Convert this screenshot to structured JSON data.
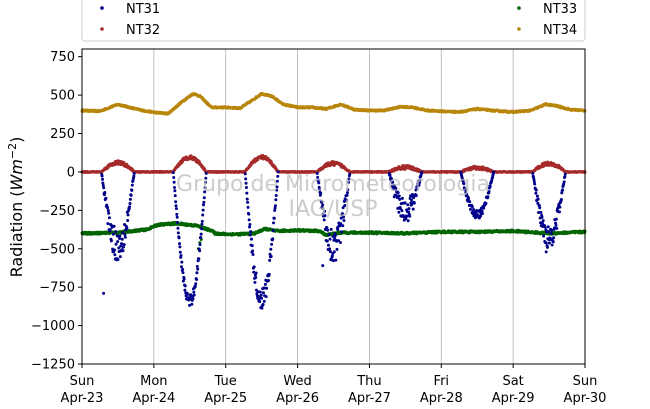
{
  "chart_data": {
    "type": "scatter",
    "title": "",
    "ylabel": "Radiation ($Wm^{-2}$)",
    "ylabel_parts": {
      "main": "Radiation (",
      "var": "Wm",
      "sup": "−2",
      "close": ")"
    },
    "xlabel": "",
    "ylim": [
      -1250,
      800
    ],
    "xlim": [
      0,
      7
    ],
    "yticks": [
      -1250,
      -1000,
      -750,
      -500,
      -250,
      0,
      250,
      500,
      750
    ],
    "ytick_labels": [
      "−1250",
      "−1000",
      "−750",
      "−500",
      "−250",
      "0",
      "250",
      "500",
      "750"
    ],
    "xticks": [
      {
        "value": 0,
        "day": "Sun",
        "date": "Apr-23"
      },
      {
        "value": 1,
        "day": "Mon",
        "date": "Apr-24"
      },
      {
        "value": 2,
        "day": "Tue",
        "date": "Apr-25"
      },
      {
        "value": 3,
        "day": "Wed",
        "date": "Apr-26"
      },
      {
        "value": 4,
        "day": "Thu",
        "date": "Apr-27"
      },
      {
        "value": 5,
        "day": "Fri",
        "date": "Apr-28"
      },
      {
        "value": 6,
        "day": "Sat",
        "date": "Apr-29"
      },
      {
        "value": 7,
        "day": "Sun",
        "date": "Apr-30"
      }
    ],
    "x_unit": "days since Apr-23 00:00",
    "grid": "vertical",
    "legend": "top, 2 columns",
    "watermark": [
      "Grupo de Micrometeorologia",
      "IAG/USP"
    ],
    "series": [
      {
        "name": "NT31",
        "color": "#00008b",
        "marker": "point",
        "baseline": 0,
        "daytime_peaks": [
          {
            "day": 0,
            "peak": -480,
            "noise": 110
          },
          {
            "day": 1,
            "peak": -840,
            "noise": 40
          },
          {
            "day": 2,
            "peak": -830,
            "noise": 70
          },
          {
            "day": 3,
            "peak": -480,
            "noise": 110
          },
          {
            "day": 4,
            "peak": -250,
            "noise": 80
          },
          {
            "day": 5,
            "peak": -280,
            "noise": 30
          },
          {
            "day": 6,
            "peak": -420,
            "noise": 80
          }
        ],
        "outliers": [
          [
            0.3,
            -790
          ],
          [
            3.35,
            -610
          ],
          [
            6.46,
            -520
          ]
        ]
      },
      {
        "name": "NT32",
        "color": "#a52a2a",
        "marker": "point",
        "baseline": 0,
        "daytime_peaks": [
          {
            "day": 0,
            "peak": 60
          },
          {
            "day": 1,
            "peak": 95
          },
          {
            "day": 2,
            "peak": 95
          },
          {
            "day": 3,
            "peak": 55
          },
          {
            "day": 4,
            "peak": 30
          },
          {
            "day": 5,
            "peak": 25
          },
          {
            "day": 6,
            "peak": 55
          }
        ]
      },
      {
        "name": "NT33",
        "color": "#006400",
        "marker": "point",
        "x": [
          0,
          0.5,
          0.9,
          1.05,
          1.3,
          1.6,
          1.75,
          1.8,
          1.85,
          2.0,
          2.2,
          2.4,
          2.55,
          2.7,
          3.0,
          3.3,
          3.4,
          3.6,
          4.0,
          4.5,
          5.0,
          5.5,
          6.0,
          6.5,
          7.0
        ],
        "y": [
          -400,
          -395,
          -375,
          -345,
          -335,
          -350,
          -375,
          -380,
          -400,
          -405,
          -405,
          -400,
          -370,
          -385,
          -380,
          -385,
          -410,
          -395,
          -395,
          -400,
          -390,
          -390,
          -385,
          -400,
          -390
        ],
        "outliers": [
          [
            1.62,
            -500
          ],
          [
            1.64,
            -460
          ],
          [
            1.66,
            -440
          ]
        ]
      },
      {
        "name": "NT34",
        "color": "#b8860b",
        "marker": "point",
        "x": [
          0,
          0.25,
          0.5,
          0.7,
          0.9,
          1.05,
          1.2,
          1.4,
          1.55,
          1.65,
          1.8,
          2.0,
          2.2,
          2.35,
          2.5,
          2.65,
          2.8,
          3.0,
          3.2,
          3.4,
          3.6,
          3.8,
          4.0,
          4.2,
          4.45,
          4.6,
          4.8,
          5.0,
          5.25,
          5.5,
          5.7,
          6.0,
          6.25,
          6.45,
          6.6,
          6.8,
          7.0
        ],
        "y": [
          400,
          395,
          440,
          415,
          395,
          385,
          380,
          460,
          510,
          490,
          420,
          420,
          415,
          460,
          510,
          490,
          440,
          420,
          420,
          410,
          440,
          405,
          400,
          400,
          425,
          420,
          400,
          395,
          390,
          410,
          400,
          390,
          400,
          440,
          430,
          405,
          400
        ]
      }
    ]
  }
}
